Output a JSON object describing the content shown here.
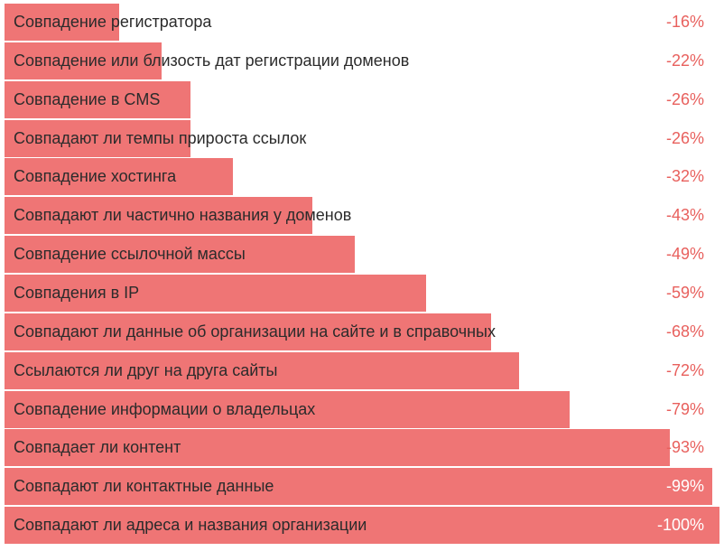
{
  "chart_data": {
    "type": "bar",
    "orientation": "horizontal",
    "bar_color": "#ef7575",
    "value_color": "#e8605d",
    "xlim": [
      0,
      100
    ],
    "unit": "%",
    "categories": [
      "Совпадение регистратора",
      "Совпадение или близость дат регистрации доменов",
      "Совпадение в CMS",
      "Совпадают ли темпы прироста ссылок",
      "Совпадение хостинга",
      "Совпадают ли частично названия у доменов",
      "Совпадение ссылочной массы",
      "Совпадения в IP",
      "Совпадают ли данные об организации на сайте и в справочных",
      "Ссылаются ли друг на друга сайты",
      "Совпадение информации о владельцах",
      "Совпадает ли контент",
      "Совпадают ли контактные данные",
      "Совпадают ли адреса и названия организации"
    ],
    "values": [
      16,
      22,
      26,
      26,
      32,
      43,
      49,
      59,
      68,
      72,
      79,
      93,
      99,
      100
    ],
    "value_labels": [
      "-16%",
      "-22%",
      "-26%",
      "-26%",
      "-32%",
      "-43%",
      "-49%",
      "-59%",
      "-68%",
      "-72%",
      "-79%",
      "-93%",
      "-99%",
      "-100%"
    ]
  }
}
